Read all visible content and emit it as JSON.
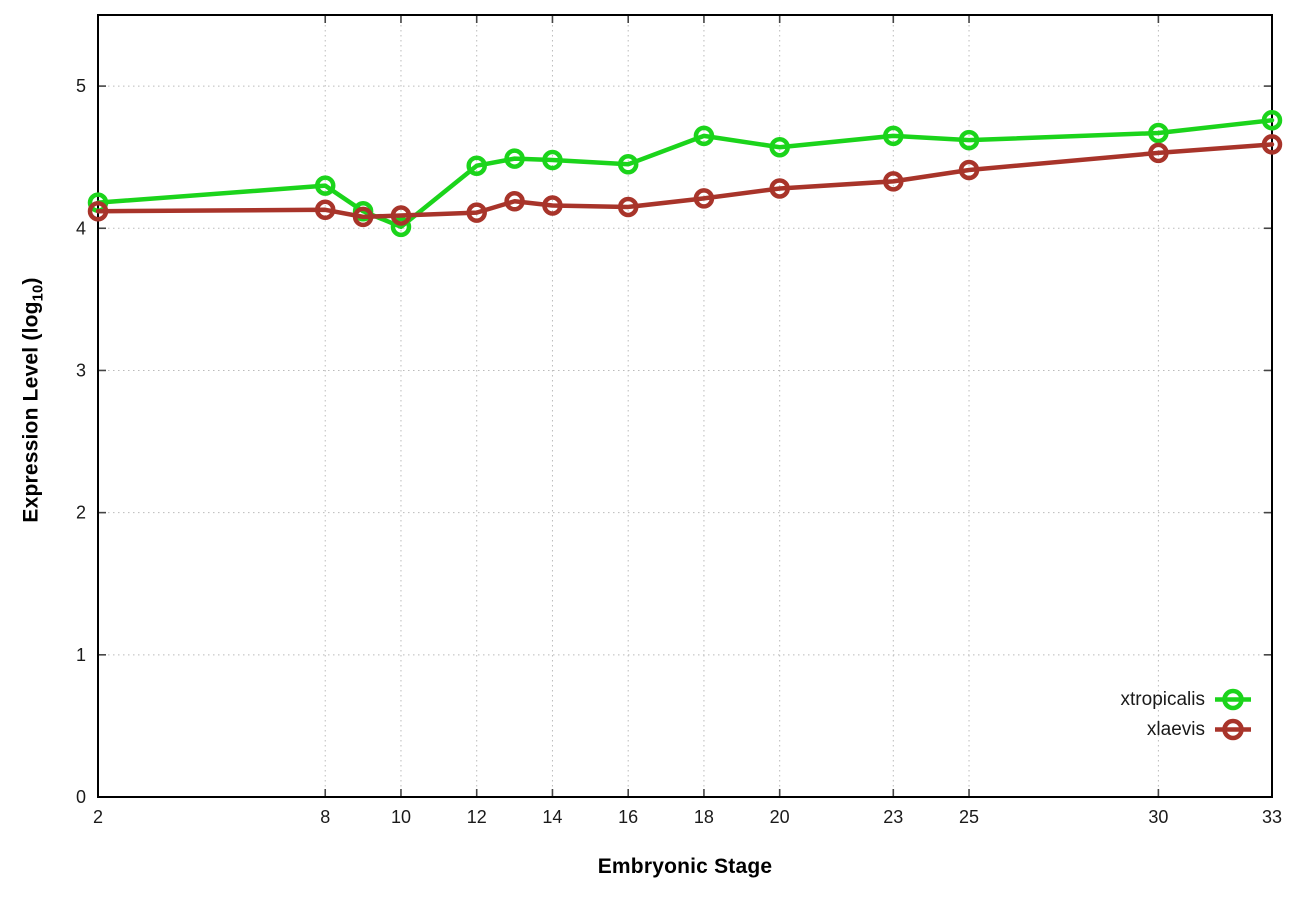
{
  "chart_data": {
    "type": "line",
    "title": "",
    "xlabel": "Embryonic Stage",
    "ylabel": "Expression Level (log10)",
    "ylabel_parts": {
      "prefix": "Expression Level (log",
      "sub": "10",
      "suffix": ")"
    },
    "x": [
      2,
      8,
      9,
      10,
      12,
      13,
      14,
      16,
      18,
      20,
      23,
      25,
      30,
      33
    ],
    "x_ticks": [
      "2",
      "8",
      "10",
      "12",
      "14",
      "16",
      "18",
      "20",
      "23",
      "25",
      "30",
      "33"
    ],
    "x_tick_values": [
      2,
      8,
      10,
      12,
      14,
      16,
      18,
      20,
      23,
      25,
      30,
      33
    ],
    "y_ticks": [
      "0",
      "1",
      "2",
      "3",
      "4",
      "5"
    ],
    "y_tick_values": [
      0,
      1,
      2,
      3,
      4,
      5
    ],
    "xlim": [
      2,
      33
    ],
    "ylim": [
      0,
      5.5
    ],
    "grid": true,
    "grid_style": "dotted",
    "legend_position": "bottom-right",
    "marker": "open-circle",
    "series": [
      {
        "name": "xtropicalis",
        "color": "#1bd41b",
        "values": [
          4.18,
          4.3,
          4.12,
          4.01,
          4.44,
          4.49,
          4.48,
          4.45,
          4.65,
          4.57,
          4.65,
          4.62,
          4.67,
          4.76
        ]
      },
      {
        "name": "xlaevis",
        "color": "#a8342a",
        "values": [
          4.12,
          4.13,
          4.08,
          4.09,
          4.11,
          4.19,
          4.16,
          4.15,
          4.21,
          4.28,
          4.33,
          4.41,
          4.53,
          4.59
        ]
      }
    ],
    "colors": {
      "border": "#000000",
      "grid": "#bbbbbb",
      "tick": "#444444",
      "tick_label": "#1a1a1a"
    }
  }
}
